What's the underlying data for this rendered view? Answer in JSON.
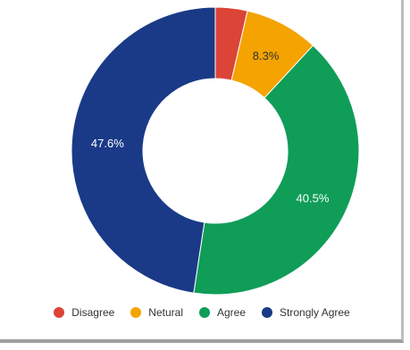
{
  "chart_data": {
    "type": "pie",
    "variant": "donut",
    "categories": [
      "Disagree",
      "Netural",
      "Agree",
      "Strongly Agree"
    ],
    "values": [
      3.6,
      8.3,
      40.5,
      47.6
    ],
    "labels": [
      "",
      "8.3%",
      "40.5%",
      "47.6%"
    ],
    "colors": [
      "#db4437",
      "#f4a300",
      "#0f9d58",
      "#1a3a87"
    ],
    "label_colors": [
      "#ffffff",
      "#333333",
      "#ffffff",
      "#ffffff"
    ],
    "title": "",
    "legend_position": "bottom"
  },
  "legend": {
    "items": [
      {
        "label": "Disagree",
        "color": "#db4437"
      },
      {
        "label": "Netural",
        "color": "#f4a300"
      },
      {
        "label": "Agree",
        "color": "#0f9d58"
      },
      {
        "label": "Strongly Agree",
        "color": "#1a3a87"
      }
    ]
  }
}
